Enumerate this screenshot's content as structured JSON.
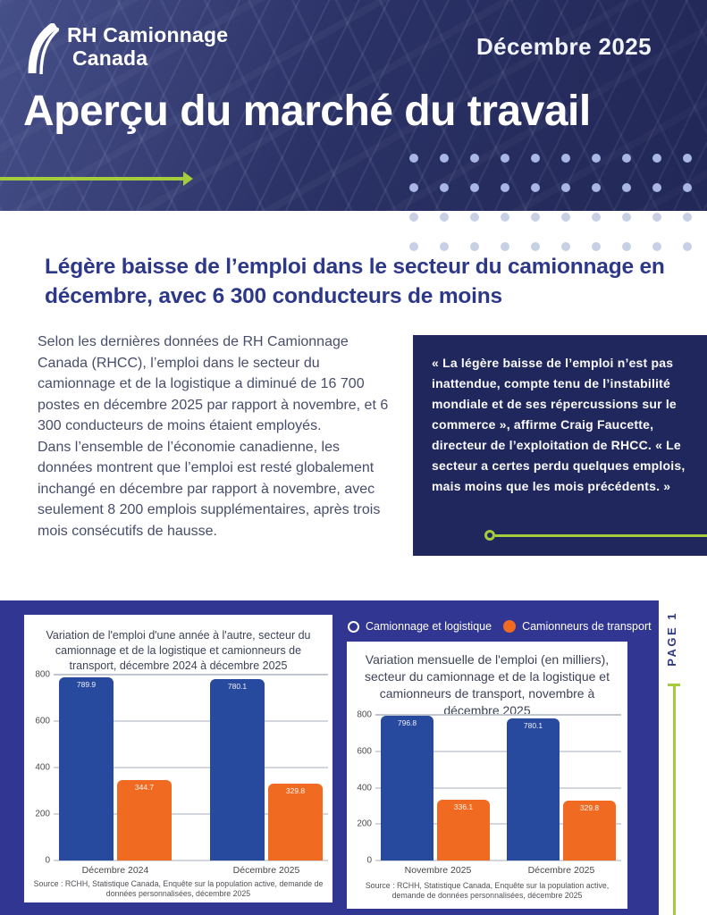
{
  "header": {
    "logo_line1": "RH Camionnage",
    "logo_line2": "Canada",
    "issue_date": "Décembre 2025",
    "title": "Aperçu du marché du travail"
  },
  "article": {
    "headline": "Légère baisse de l’emploi dans le secteur du camionnage en décembre, avec 6 300 conducteurs de moins",
    "body_paragraphs": [
      " Selon les dernières données de RH Camionnage Canada (RHCC), l’emploi dans le secteur du camionnage et de la logistique a diminué de 16 700 postes en décembre 2025 par rapport à novembre, et 6 300 conducteurs de moins étaient employés.",
      "Dans l’ensemble de l’économie canadienne, les données montrent que l’emploi est resté globalement inchangé en décembre par rapport à novembre, avec seulement 8 200 emplois supplémentaires, après trois mois consécutifs de hausse."
    ],
    "quote": "« La légère baisse de l’emploi n’est pas inattendue, compte tenu de l’instabilité mondiale et de ses répercussions sur le commerce », affirme Craig Faucette, directeur de l’exploitation de RHCC. « Le secteur a certes perdu quelques emplois, mais moins que les mois précédents. »"
  },
  "page_label": "PAGE 1",
  "legend": [
    {
      "label": "Camionnage et logistique",
      "style": "ring",
      "color": "#FFFFFF"
    },
    {
      "label": "Camionneurs de transport",
      "style": "dot",
      "color": "#F16A21"
    }
  ],
  "chart_data": [
    {
      "type": "bar",
      "title": "Variation de l'emploi d'une année à l'autre, secteur du camionnage et de la logistique et camionneurs de transport, décembre 2024 à décembre 2025",
      "categories": [
        "Décembre 2024",
        "Décembre 2025"
      ],
      "series": [
        {
          "name": "Camionnage et logistique",
          "color": "#27499E",
          "values": [
            789.9,
            780.1
          ]
        },
        {
          "name": "Camionneurs de transport",
          "color": "#F16A21",
          "values": [
            344.7,
            329.8
          ]
        }
      ],
      "ylim": [
        0,
        800
      ],
      "yticks": [
        0,
        200,
        400,
        600,
        800
      ],
      "grid": "horizontal",
      "legend_position": "top-right-of-panel",
      "source": "Source : RCHH, Statistique Canada, Enquête sur la population active, demande de données personnalisées, décembre 2025"
    },
    {
      "type": "bar",
      "title": "Variation mensuelle de l'emploi (en milliers), secteur du camionnage et de la logistique et camionneurs de transport, novembre à décembre 2025",
      "categories": [
        "Novembre 2025",
        "Décembre 2025"
      ],
      "series": [
        {
          "name": "Camionnage et logistique",
          "color": "#27499E",
          "values": [
            796.8,
            780.1
          ]
        },
        {
          "name": "Camionneurs de transport",
          "color": "#F16A21",
          "values": [
            336.1,
            329.8
          ]
        }
      ],
      "ylim": [
        0,
        800
      ],
      "yticks": [
        0,
        200,
        400,
        600,
        800
      ],
      "grid": "horizontal",
      "legend_position": "top-right-of-panel",
      "source": "Source : RCHH, Statistique Canada, Enquête sur la population active, demande de données personnalisées, décembre 2025"
    }
  ],
  "colors": {
    "header_navy": "#2B3266",
    "panel_blue": "#303692",
    "bar_blue": "#27499E",
    "accent_orange": "#F16A21",
    "accent_green": "#A4CC3C",
    "headline_blue": "#2D3889",
    "quote_background": "#20275C"
  }
}
